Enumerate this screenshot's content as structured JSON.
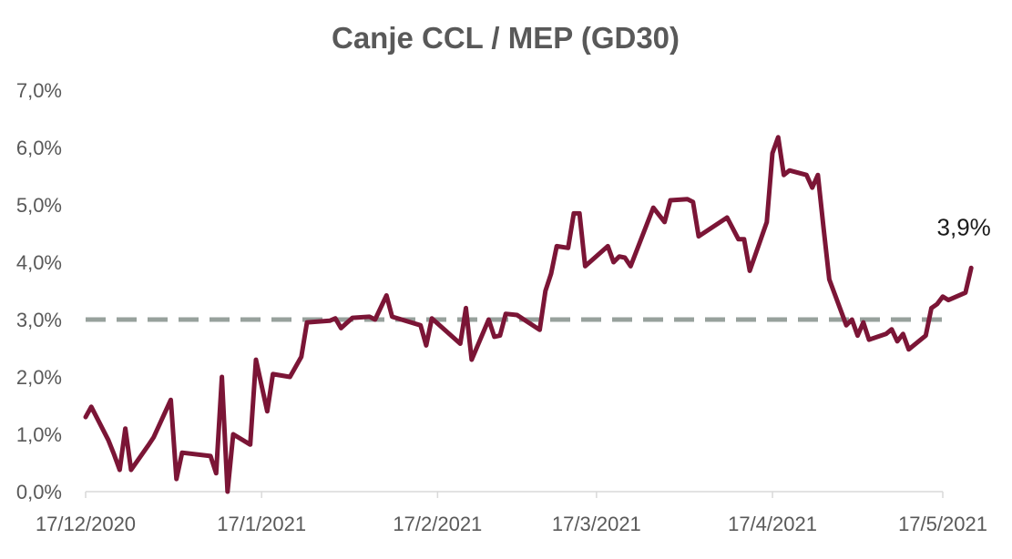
{
  "chart_data": {
    "type": "line",
    "title": "Canje CCL / MEP (GD30)",
    "xlabel": "",
    "ylabel": "",
    "x_range": [
      "2020-12-17",
      "2021-05-17"
    ],
    "ylim": [
      0,
      7
    ],
    "y_ticks": [
      0,
      1,
      2,
      3,
      4,
      5,
      6,
      7
    ],
    "y_tick_labels": [
      "0,0%",
      "1,0%",
      "2,0%",
      "3,0%",
      "4,0%",
      "5,0%",
      "6,0%",
      "7,0%"
    ],
    "x_ticks": [
      "2020-12-17",
      "2021-01-17",
      "2021-02-17",
      "2021-03-17",
      "2021-04-17",
      "2021-05-17"
    ],
    "x_tick_labels": [
      "17/12/2020",
      "17/1/2021",
      "17/2/2021",
      "17/3/2021",
      "17/4/2021",
      "17/5/2021"
    ],
    "grid": false,
    "legend": "none",
    "colors": {
      "series": "#7b1536",
      "reference": "#97a19c",
      "title": "#595959",
      "axis": "#d9d9d9"
    },
    "reference_line": {
      "y": 3.0,
      "style": "dashed"
    },
    "annotation": {
      "text": "3,9%"
    },
    "series": [
      {
        "points": [
          [
            "2020-12-17",
            1.3
          ],
          [
            "2020-12-18",
            1.48
          ],
          [
            "2020-12-21",
            0.9
          ],
          [
            "2020-12-22",
            0.65
          ],
          [
            "2020-12-23",
            0.38
          ],
          [
            "2020-12-24",
            1.1
          ],
          [
            "2020-12-25",
            0.38
          ],
          [
            "2020-12-28",
            0.8
          ],
          [
            "2020-12-29",
            0.95
          ],
          [
            "2021-01-01",
            1.6
          ],
          [
            "2021-01-02",
            0.22
          ],
          [
            "2021-01-03",
            0.68
          ],
          [
            "2021-01-08",
            0.62
          ],
          [
            "2021-01-09",
            0.32
          ],
          [
            "2021-01-10",
            2.0
          ],
          [
            "2021-01-11",
            0.0
          ],
          [
            "2021-01-12",
            1.0
          ],
          [
            "2021-01-15",
            0.82
          ],
          [
            "2021-01-16",
            2.3
          ],
          [
            "2021-01-18",
            1.4
          ],
          [
            "2021-01-19",
            2.05
          ],
          [
            "2021-01-22",
            2.0
          ],
          [
            "2021-01-24",
            2.35
          ],
          [
            "2021-01-25",
            2.95
          ],
          [
            "2021-01-29",
            2.98
          ],
          [
            "2021-01-30",
            3.02
          ],
          [
            "2021-01-31",
            2.85
          ],
          [
            "2021-02-02",
            3.03
          ],
          [
            "2021-02-05",
            3.05
          ],
          [
            "2021-02-06",
            3.0
          ],
          [
            "2021-02-08",
            3.42
          ],
          [
            "2021-02-09",
            3.05
          ],
          [
            "2021-02-14",
            2.9
          ],
          [
            "2021-02-15",
            2.55
          ],
          [
            "2021-02-16",
            3.02
          ],
          [
            "2021-02-21",
            2.58
          ],
          [
            "2021-02-22",
            3.2
          ],
          [
            "2021-02-23",
            2.3
          ],
          [
            "2021-02-26",
            3.0
          ],
          [
            "2021-02-27",
            2.7
          ],
          [
            "2021-02-28",
            2.72
          ],
          [
            "2021-03-01",
            3.1
          ],
          [
            "2021-03-03",
            3.08
          ],
          [
            "2021-03-07",
            2.82
          ],
          [
            "2021-03-08",
            3.5
          ],
          [
            "2021-03-09",
            3.8
          ],
          [
            "2021-03-10",
            4.28
          ],
          [
            "2021-03-12",
            4.25
          ],
          [
            "2021-03-13",
            4.85
          ],
          [
            "2021-03-14",
            4.85
          ],
          [
            "2021-03-15",
            3.93
          ],
          [
            "2021-03-19",
            4.28
          ],
          [
            "2021-03-20",
            4.0
          ],
          [
            "2021-03-21",
            4.1
          ],
          [
            "2021-03-22",
            4.08
          ],
          [
            "2021-03-23",
            3.93
          ],
          [
            "2021-03-27",
            4.95
          ],
          [
            "2021-03-29",
            4.7
          ],
          [
            "2021-03-30",
            5.08
          ],
          [
            "2021-04-02",
            5.1
          ],
          [
            "2021-04-03",
            5.05
          ],
          [
            "2021-04-04",
            4.45
          ],
          [
            "2021-04-09",
            4.78
          ],
          [
            "2021-04-11",
            4.4
          ],
          [
            "2021-04-12",
            4.4
          ],
          [
            "2021-04-13",
            3.85
          ],
          [
            "2021-04-16",
            4.7
          ],
          [
            "2021-04-17",
            5.9
          ],
          [
            "2021-04-18",
            6.18
          ],
          [
            "2021-04-19",
            5.52
          ],
          [
            "2021-04-20",
            5.6
          ],
          [
            "2021-04-23",
            5.52
          ],
          [
            "2021-04-24",
            5.3
          ],
          [
            "2021-04-25",
            5.52
          ],
          [
            "2021-04-26",
            4.6
          ],
          [
            "2021-04-27",
            3.7
          ],
          [
            "2021-04-30",
            2.9
          ],
          [
            "2021-05-01",
            3.0
          ],
          [
            "2021-05-02",
            2.72
          ],
          [
            "2021-05-03",
            2.95
          ],
          [
            "2021-05-04",
            2.65
          ],
          [
            "2021-05-07",
            2.75
          ],
          [
            "2021-05-08",
            2.83
          ],
          [
            "2021-05-09",
            2.62
          ],
          [
            "2021-05-10",
            2.75
          ],
          [
            "2021-05-11",
            2.48
          ],
          [
            "2021-05-14",
            2.72
          ],
          [
            "2021-05-15",
            3.2
          ],
          [
            "2021-05-16",
            3.27
          ],
          [
            "2021-05-17",
            3.4
          ],
          [
            "2021-05-18",
            3.34
          ],
          [
            "2021-05-21",
            3.47
          ],
          [
            "2021-05-22",
            3.9
          ]
        ]
      }
    ]
  }
}
